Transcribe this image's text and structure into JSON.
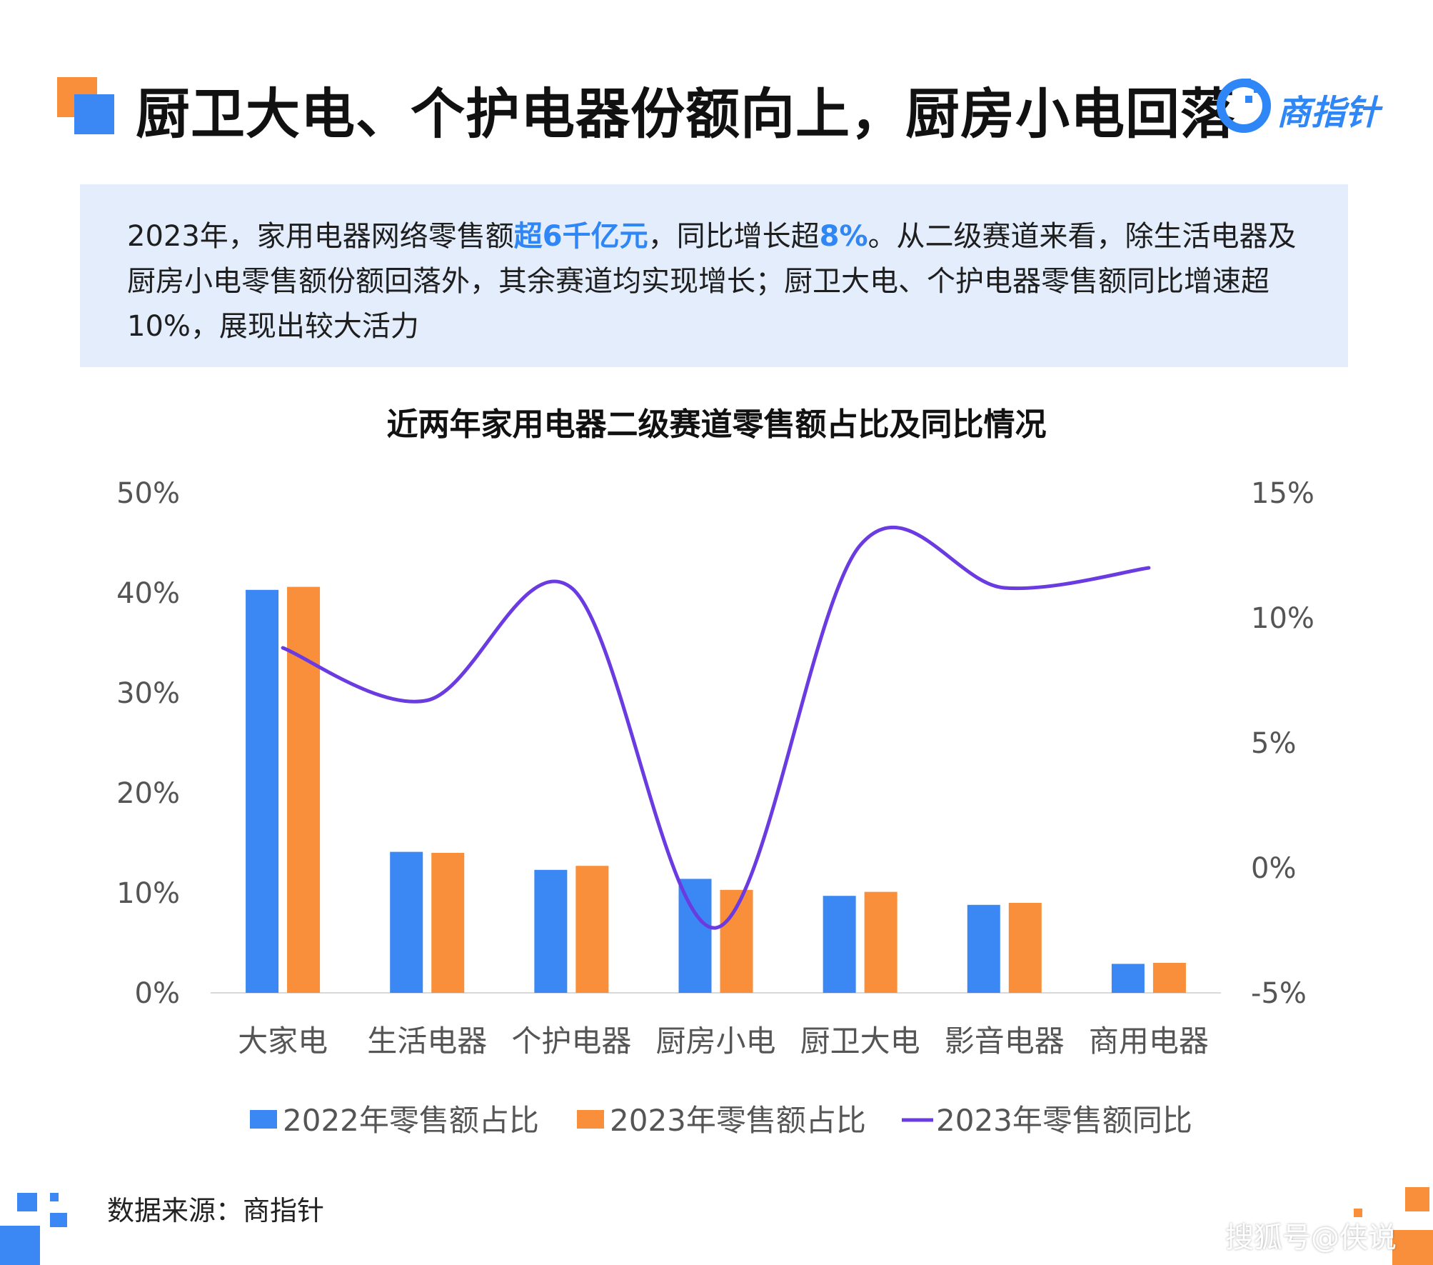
{
  "header": {
    "title": "厨卫大电、个护电器份额向上，厨房小电回落",
    "brand": "商指针"
  },
  "summary": {
    "t1": "2023年，家用电器网络零售额",
    "h1": "超6千亿元",
    "t2": "，同比增长超",
    "h2": "8%",
    "t3": "。从二级赛道来看，除生活电器及厨房小电零售额份额回落外，其余赛道均实现增长；厨卫大电、个护电器零售额同比增速超10%，展现出较大活力"
  },
  "colors": {
    "bar2022": "#3b87f4",
    "bar2023": "#f98f3a",
    "line": "#6a3be0",
    "accent_blue": "#2f86f6",
    "accent_orange": "#f98f3a",
    "summary_bg": "#e3edfb"
  },
  "chart_data": {
    "type": "bar",
    "title": "近两年家用电器二级赛道零售额占比及同比情况",
    "categories": [
      "大家电",
      "生活电器",
      "个护电器",
      "厨房小电",
      "厨卫大电",
      "影音电器",
      "商用电器"
    ],
    "series": [
      {
        "name": "2022年零售额占比",
        "type": "bar",
        "axis": "left",
        "values": [
          40.3,
          14.1,
          12.3,
          11.4,
          9.7,
          8.8,
          2.9
        ]
      },
      {
        "name": "2023年零售额占比",
        "type": "bar",
        "axis": "left",
        "values": [
          40.6,
          14.0,
          12.7,
          10.3,
          10.1,
          9.0,
          3.0
        ]
      },
      {
        "name": "2023年零售额同比",
        "type": "line",
        "axis": "right",
        "values": [
          8.8,
          6.7,
          11.2,
          -2.4,
          12.9,
          11.2,
          12.0
        ]
      }
    ],
    "y_left": {
      "ticks": [
        "0%",
        "10%",
        "20%",
        "30%",
        "40%",
        "50%"
      ],
      "ylim": [
        0,
        50
      ]
    },
    "y_right": {
      "ticks": [
        "-5%",
        "0%",
        "5%",
        "10%",
        "15%"
      ],
      "ylim": [
        -5,
        15
      ]
    },
    "legend": "bottom",
    "grid": false
  },
  "footer": {
    "source": "数据来源：商指针",
    "watermark": "搜狐号@侠说"
  }
}
